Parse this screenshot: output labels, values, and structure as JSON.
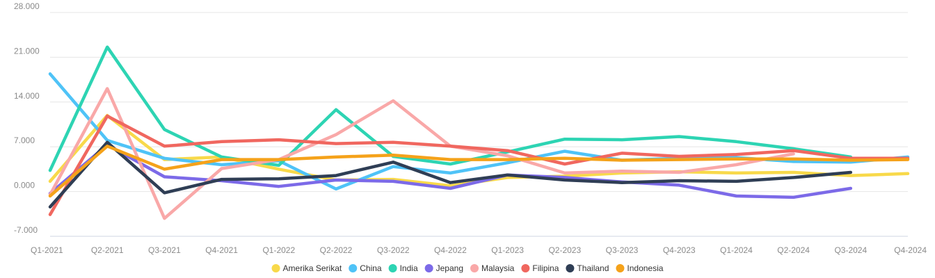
{
  "chart_data": {
    "type": "line",
    "categories": [
      "Q1-2021",
      "Q2-2021",
      "Q3-2021",
      "Q4-2021",
      "Q1-2022",
      "Q2-2022",
      "Q3-2022",
      "Q4-2022",
      "Q1-2023",
      "Q2-2023",
      "Q3-2023",
      "Q4-2023",
      "Q1-2024",
      "Q2-2024",
      "Q3-2024",
      "Q4-2024"
    ],
    "y_ticks": [
      "28.000",
      "21.000",
      "14.000",
      "7.000",
      "0.000",
      "-7.000"
    ],
    "y_tick_values": [
      28,
      21,
      14,
      7,
      0,
      -7
    ],
    "ylim": [
      -7,
      28
    ],
    "grid": true,
    "legend_position": "bottom-center",
    "series": [
      {
        "name": "Amerika Serikat",
        "color": "#f8d94a",
        "values": [
          1.6,
          11.9,
          5.0,
          5.4,
          3.5,
          1.8,
          1.9,
          0.9,
          2.2,
          2.4,
          2.9,
          3.1,
          2.9,
          3.0,
          2.5,
          2.8
        ]
      },
      {
        "name": "China",
        "color": "#4fc3f7",
        "values": [
          18.4,
          8.0,
          5.2,
          4.2,
          4.8,
          0.4,
          3.9,
          2.9,
          4.5,
          6.3,
          4.9,
          5.2,
          5.3,
          4.7,
          4.6,
          5.4
        ]
      },
      {
        "name": "India",
        "color": "#2dd4b3",
        "values": [
          3.3,
          22.6,
          9.7,
          5.4,
          4.1,
          12.8,
          5.5,
          4.3,
          6.2,
          8.2,
          8.1,
          8.6,
          7.8,
          6.7,
          5.4,
          null
        ]
      },
      {
        "name": "Jepang",
        "color": "#7c6ae8",
        "values": [
          -0.3,
          7.3,
          2.3,
          1.7,
          0.8,
          1.8,
          1.6,
          0.5,
          2.6,
          2.2,
          1.5,
          1.0,
          -0.7,
          -0.9,
          0.5,
          null
        ]
      },
      {
        "name": "Malaysia",
        "color": "#f9a8a8",
        "values": [
          -0.5,
          16.1,
          -4.2,
          3.6,
          5.0,
          8.9,
          14.2,
          7.1,
          5.6,
          2.9,
          3.2,
          3.0,
          4.2,
          5.9,
          null,
          null
        ]
      },
      {
        "name": "Filipina",
        "color": "#f0675f",
        "values": [
          -3.6,
          11.8,
          7.1,
          7.8,
          8.1,
          7.5,
          7.7,
          7.1,
          6.4,
          4.3,
          6.0,
          5.5,
          5.8,
          6.4,
          5.2,
          5.2
        ]
      },
      {
        "name": "Thailand",
        "color": "#2f3e55",
        "values": [
          -2.4,
          7.7,
          -0.2,
          1.9,
          2.0,
          2.5,
          4.6,
          1.4,
          2.6,
          1.8,
          1.4,
          1.7,
          1.6,
          2.2,
          3.0,
          null
        ]
      },
      {
        "name": "Indonesia",
        "color": "#f5a21a",
        "values": [
          -0.7,
          7.1,
          3.5,
          5.0,
          5.0,
          5.4,
          5.7,
          5.0,
          5.0,
          5.2,
          4.9,
          5.0,
          5.1,
          5.1,
          4.9,
          5.0
        ]
      }
    ]
  }
}
